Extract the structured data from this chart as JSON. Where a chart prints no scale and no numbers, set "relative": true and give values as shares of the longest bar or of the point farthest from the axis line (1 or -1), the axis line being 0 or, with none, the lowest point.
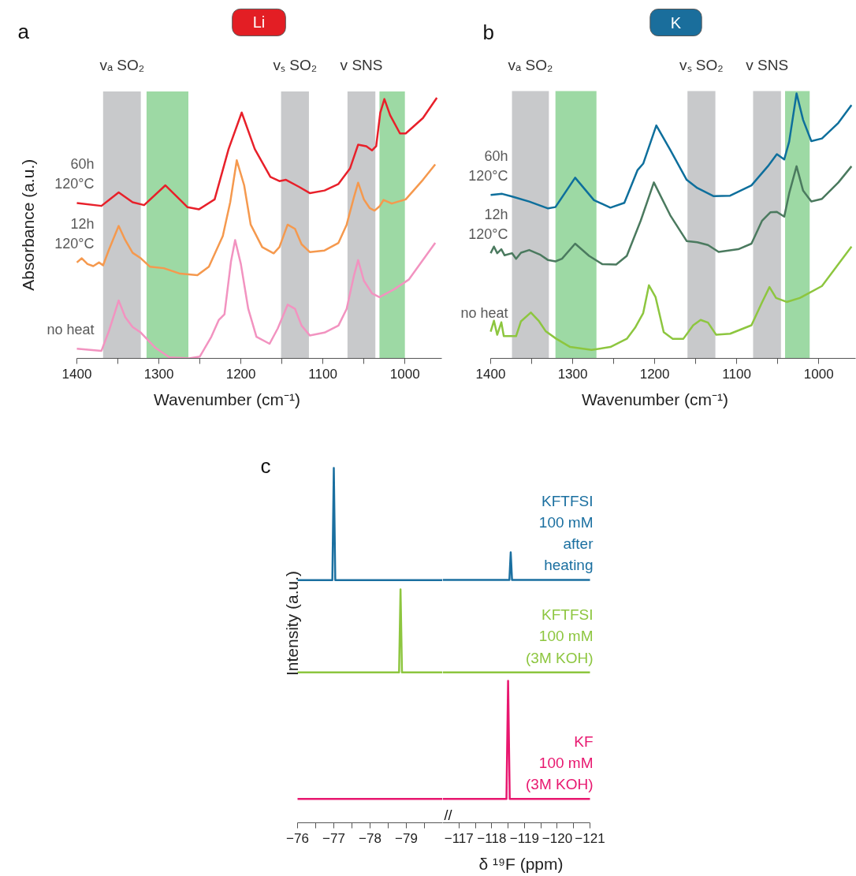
{
  "chart_data": [
    {
      "type": "line",
      "title": "Li",
      "xlabel": "Wavenumber (cm⁻¹)",
      "ylabel": "Absorbance (a.u.)",
      "relative": true,
      "annotations": [
        "a"
      ],
      "xlim": [
        1400,
        955
      ],
      "xticks": [
        1400,
        {
          "value": 1350,
          "label": null
        },
        1300,
        {
          "value": 1250,
          "label": null
        },
        1200,
        {
          "value": 1150,
          "label": null
        },
        1100,
        {
          "value": 1050,
          "label": null
        },
        1000
      ],
      "bands": [
        {
          "axis": "x",
          "from": 1368,
          "to": 1322,
          "label": "vₐ SO₂",
          "color": "#c8c9cb"
        },
        {
          "axis": "x",
          "from": 1315,
          "to": 1264,
          "color": "#9dd9a4"
        },
        {
          "axis": "x",
          "from": 1151,
          "to": 1117,
          "label": "vₛ SO₂",
          "color": "#c8c9cb"
        },
        {
          "axis": "x",
          "from": 1070,
          "to": 1036,
          "label": "v SNS",
          "color": "#c8c9cb"
        },
        {
          "axis": "x",
          "from": 1031,
          "to": 1000,
          "color": "#9dd9a4"
        }
      ],
      "series": [
        {
          "name": "60h\n120°C",
          "color": "#e8202a",
          "x": [
            1400,
            1370,
            1349,
            1332,
            1318,
            1292,
            1265,
            1251,
            1232,
            1215,
            1199,
            1183,
            1164,
            1153,
            1145,
            1129,
            1116,
            1098,
            1081,
            1067,
            1057,
            1047,
            1040,
            1035,
            1030,
            1025,
            1018,
            1006,
            999,
            978,
            961
          ],
          "values": [
            0.596,
            0.585,
            0.637,
            0.599,
            0.588,
            0.664,
            0.58,
            0.572,
            0.61,
            0.803,
            0.943,
            0.803,
            0.696,
            0.68,
            0.685,
            0.658,
            0.634,
            0.644,
            0.669,
            0.728,
            0.82,
            0.814,
            0.798,
            0.814,
            0.943,
            0.995,
            0.933,
            0.863,
            0.863,
            0.922,
            1.0
          ]
        },
        {
          "name": "12h\n120°C",
          "color": "#f5994e",
          "x": [
            1400,
            1394,
            1387,
            1380,
            1373,
            1368,
            1361,
            1349,
            1341,
            1332,
            1322,
            1311,
            1294,
            1274,
            1253,
            1239,
            1222,
            1213,
            1205,
            1196,
            1188,
            1174,
            1160,
            1153,
            1143,
            1134,
            1126,
            1116,
            1098,
            1081,
            1071,
            1062,
            1057,
            1050,
            1043,
            1037,
            1031,
            1026,
            1016,
            999,
            978,
            963
          ],
          "values": [
            0.368,
            0.384,
            0.362,
            0.354,
            0.368,
            0.357,
            0.416,
            0.508,
            0.454,
            0.405,
            0.384,
            0.352,
            0.346,
            0.325,
            0.319,
            0.352,
            0.47,
            0.599,
            0.76,
            0.664,
            0.513,
            0.427,
            0.403,
            0.427,
            0.513,
            0.497,
            0.438,
            0.408,
            0.414,
            0.443,
            0.513,
            0.62,
            0.674,
            0.61,
            0.577,
            0.567,
            0.583,
            0.608,
            0.594,
            0.61,
            0.685,
            0.744
          ]
        },
        {
          "name": "no heat",
          "color": "#f293c0",
          "x": [
            1400,
            1370,
            1361,
            1349,
            1341,
            1332,
            1322,
            1304,
            1287,
            1263,
            1250,
            1236,
            1227,
            1220,
            1212,
            1207,
            1200,
            1191,
            1181,
            1165,
            1155,
            1143,
            1134,
            1126,
            1116,
            1098,
            1081,
            1071,
            1062,
            1057,
            1050,
            1040,
            1031,
            1013,
            995,
            963
          ],
          "values": [
            0.037,
            0.029,
            0.104,
            0.222,
            0.158,
            0.12,
            0.099,
            0.04,
            0.004,
            0.0,
            0.007,
            0.083,
            0.147,
            0.169,
            0.373,
            0.454,
            0.362,
            0.19,
            0.083,
            0.056,
            0.115,
            0.206,
            0.19,
            0.126,
            0.088,
            0.099,
            0.126,
            0.19,
            0.319,
            0.377,
            0.298,
            0.249,
            0.235,
            0.265,
            0.303,
            0.443
          ]
        }
      ]
    },
    {
      "type": "line",
      "title": "K",
      "xlabel": "Wavenumber (cm⁻¹)",
      "relative": true,
      "annotations": [
        "b"
      ],
      "xlim": [
        1400,
        955
      ],
      "xticks": [
        1400,
        {
          "value": 1350,
          "label": null
        },
        1300,
        {
          "value": 1250,
          "label": null
        },
        1200,
        {
          "value": 1150,
          "label": null
        },
        1100,
        {
          "value": 1050,
          "label": null
        },
        1000
      ],
      "bands": [
        {
          "axis": "x",
          "from": 1374,
          "to": 1329,
          "label": "vₐ SO₂",
          "color": "#c8c9cb"
        },
        {
          "axis": "x",
          "from": 1321,
          "to": 1271,
          "color": "#9dd9a4"
        },
        {
          "axis": "x",
          "from": 1160,
          "to": 1126,
          "label": "vₛ SO₂",
          "color": "#c8c9cb"
        },
        {
          "axis": "x",
          "from": 1080,
          "to": 1046,
          "label": "v SNS",
          "color": "#c8c9cb"
        },
        {
          "axis": "x",
          "from": 1041,
          "to": 1011,
          "color": "#9dd9a4"
        }
      ],
      "series": [
        {
          "name": "60h\n120°C",
          "color": "#0e6f9c",
          "x": [
            1400,
            1386,
            1373,
            1353,
            1330,
            1321,
            1297,
            1274,
            1254,
            1237,
            1221,
            1214,
            1198,
            1181,
            1161,
            1148,
            1128,
            1108,
            1082,
            1062,
            1051,
            1042,
            1036,
            1027,
            1019,
            1009,
            996,
            976,
            960
          ],
          "values": [
            0.617,
            0.621,
            0.61,
            0.592,
            0.566,
            0.571,
            0.682,
            0.597,
            0.569,
            0.587,
            0.71,
            0.735,
            0.879,
            0.787,
            0.674,
            0.643,
            0.612,
            0.614,
            0.653,
            0.725,
            0.771,
            0.751,
            0.818,
            1.0,
            0.9,
            0.82,
            0.83,
            0.889,
            0.956
          ]
        },
        {
          "name": "12h\n120°C",
          "color": "#4b7a5f",
          "x": [
            1400,
            1396,
            1392,
            1387,
            1383,
            1374,
            1369,
            1363,
            1353,
            1340,
            1330,
            1321,
            1313,
            1297,
            1280,
            1264,
            1247,
            1234,
            1217,
            1201,
            1181,
            1161,
            1148,
            1135,
            1122,
            1098,
            1082,
            1069,
            1059,
            1051,
            1042,
            1036,
            1027,
            1019,
            1009,
            996,
            976,
            960
          ],
          "values": [
            0.397,
            0.422,
            0.397,
            0.412,
            0.389,
            0.397,
            0.376,
            0.399,
            0.409,
            0.392,
            0.371,
            0.366,
            0.376,
            0.433,
            0.387,
            0.356,
            0.354,
            0.387,
            0.52,
            0.664,
            0.54,
            0.443,
            0.438,
            0.428,
            0.402,
            0.412,
            0.433,
            0.52,
            0.551,
            0.553,
            0.535,
            0.623,
            0.725,
            0.633,
            0.592,
            0.602,
            0.664,
            0.725
          ]
        },
        {
          "name": "no heat",
          "color": "#8dc63f",
          "x": [
            1400,
            1396,
            1392,
            1387,
            1384,
            1374,
            1369,
            1363,
            1351,
            1341,
            1333,
            1320,
            1303,
            1277,
            1254,
            1234,
            1224,
            1214,
            1207,
            1199,
            1189,
            1178,
            1165,
            1153,
            1144,
            1135,
            1125,
            1108,
            1082,
            1069,
            1060,
            1052,
            1039,
            1023,
            996,
            960
          ],
          "values": [
            0.101,
            0.142,
            0.089,
            0.136,
            0.084,
            0.084,
            0.084,
            0.14,
            0.173,
            0.14,
            0.103,
            0.074,
            0.043,
            0.032,
            0.043,
            0.074,
            0.115,
            0.171,
            0.276,
            0.232,
            0.099,
            0.074,
            0.074,
            0.125,
            0.145,
            0.135,
            0.089,
            0.093,
            0.125,
            0.212,
            0.269,
            0.228,
            0.213,
            0.228,
            0.273,
            0.422
          ]
        }
      ]
    },
    {
      "type": "line",
      "ylabel": "Intensity (a.u.)",
      "relative": true,
      "annotations": [
        "c"
      ],
      "xlim": [
        -76,
        -80
      ],
      "xticks": [
        -76,
        {
          "value": -76.5,
          "label": null
        },
        -77,
        {
          "value": -77.5,
          "label": null
        },
        -78,
        {
          "value": -78.5,
          "label": null
        },
        -79,
        {
          "value": -79.5,
          "label": null
        }
      ],
      "series": [
        {
          "color": "#1a6fa0",
          "x": [
            -76,
            -76.96,
            -77.0,
            -77.04,
            -80
          ],
          "values": [
            0.684,
            0.684,
            1.0,
            0.684,
            0.684
          ]
        },
        {
          "color": "#8dc63f",
          "x": [
            -76,
            -78.8,
            -78.84,
            -78.88,
            -80
          ],
          "values": [
            0.424,
            0.424,
            0.658,
            0.424,
            0.424
          ]
        },
        {
          "color": "#e8176f",
          "x": [
            -76,
            -80
          ],
          "values": [
            0.067,
            0.067
          ]
        }
      ]
    },
    {
      "type": "line",
      "xlabel": "δ ¹⁹F (ppm)",
      "relative": true,
      "annotations": [
        "//"
      ],
      "xlim": [
        -116.5,
        -121
      ],
      "xticks": [
        -117,
        {
          "value": -117.5,
          "label": null
        },
        -118,
        {
          "value": -118.5,
          "label": null
        },
        -119,
        {
          "value": -119.5,
          "label": null
        },
        -120,
        {
          "value": -120.5,
          "label": null
        },
        -121
      ],
      "series": [
        {
          "name": "KFTFSI\n100 mM\nafter\nheating",
          "color": "#1a6fa0",
          "x": [
            -116.5,
            -118.54,
            -118.58,
            -118.62,
            -121
          ],
          "values": [
            0.898,
            0.898,
            1.0,
            0.898,
            0.898
          ]
        },
        {
          "name": "KFTFSI\n100 mM\n(3M KOH)",
          "color": "#8dc63f",
          "x": [
            -116.5,
            -121
          ],
          "values": [
            0.556,
            0.556
          ]
        },
        {
          "name": "KF\n100 mM\n(3M KOH)",
          "color": "#e8176f",
          "x": [
            -116.5,
            -118.45,
            -118.5,
            -118.55,
            -121
          ],
          "values": [
            0.088,
            0.088,
            0.525,
            0.088,
            0.088
          ]
        }
      ]
    }
  ]
}
